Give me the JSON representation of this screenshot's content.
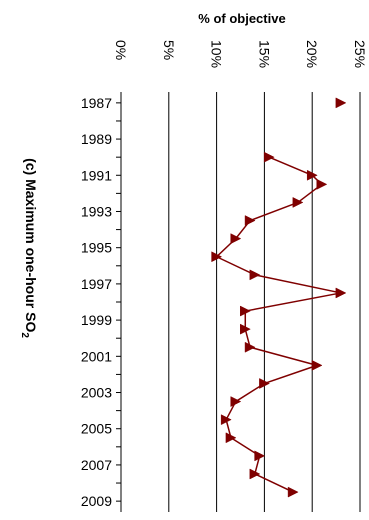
{
  "chart_data": {
    "type": "line",
    "title": "(c) Maximum one-hour SO",
    "title_subscript": "2",
    "ylabel": "% of objective",
    "orientation": "rotated-90-clockwise",
    "grid": true,
    "ylim": [
      0,
      25
    ],
    "y_ticks": [
      "0%",
      "5%",
      "10%",
      "15%",
      "20%",
      "25%"
    ],
    "y_tick_values": [
      0,
      5,
      10,
      15,
      20,
      25
    ],
    "x_tick_labels": [
      "1987",
      "1989",
      "1991",
      "1993",
      "1995",
      "1997",
      "1999",
      "2001",
      "2003",
      "2005",
      "2007",
      "2009"
    ],
    "series": [
      {
        "marker": "triangle",
        "color": "#7f0000",
        "points": [
          {
            "x": 1987,
            "y": 23.0
          },
          {
            "x": 1990,
            "y": 15.5
          },
          {
            "x": 1991,
            "y": 20.0
          },
          {
            "x": 1991.5,
            "y": 21.0
          },
          {
            "x": 1992.5,
            "y": 18.5
          },
          {
            "x": 1993.5,
            "y": 13.5
          },
          {
            "x": 1994.5,
            "y": 12.0
          },
          {
            "x": 1995.5,
            "y": 10.0
          },
          {
            "x": 1996.5,
            "y": 14.0
          },
          {
            "x": 1997.5,
            "y": 23.0
          },
          {
            "x": 1998.5,
            "y": 13.0
          },
          {
            "x": 1999.5,
            "y": 13.0
          },
          {
            "x": 2000.5,
            "y": 13.5
          },
          {
            "x": 2001.5,
            "y": 20.5
          },
          {
            "x": 2002.5,
            "y": 15.0
          },
          {
            "x": 2003.5,
            "y": 12.0
          },
          {
            "x": 2004.5,
            "y": 11.0
          },
          {
            "x": 2005.5,
            "y": 11.5
          },
          {
            "x": 2006.5,
            "y": 14.5
          },
          {
            "x": 2007.5,
            "y": 14.0
          },
          {
            "x": 2008.5,
            "y": 18.0
          }
        ]
      }
    ]
  }
}
